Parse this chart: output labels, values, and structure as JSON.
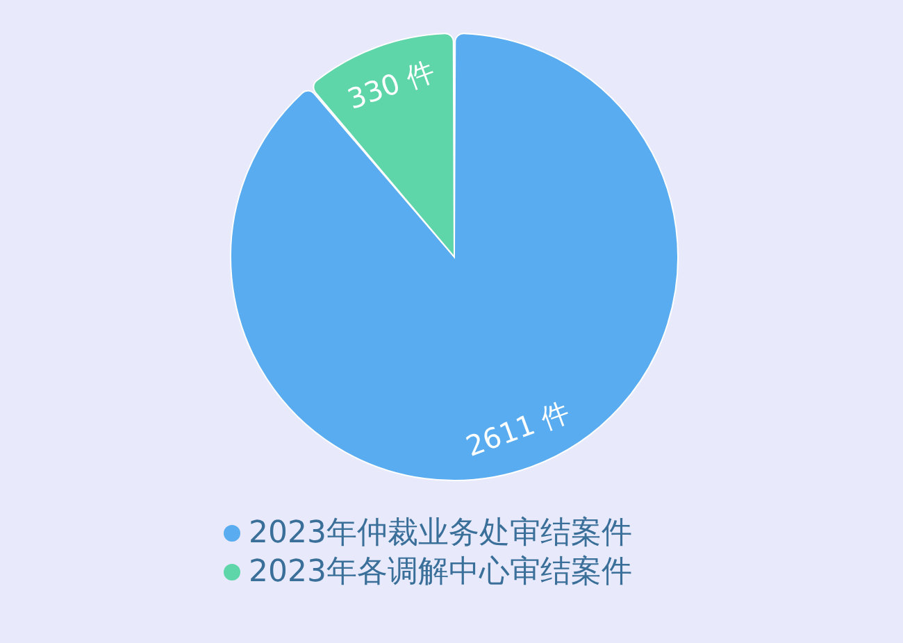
{
  "chart_data": {
    "type": "pie",
    "categories": [
      "2023年仲裁业务处审结案件",
      "2023年各调解中心审结案件"
    ],
    "values": [
      2611,
      330
    ],
    "colors": [
      "#5aacf0",
      "#5fd6aa"
    ],
    "value_labels": [
      "2611 件",
      "330 件"
    ],
    "legend": "bottom"
  }
}
